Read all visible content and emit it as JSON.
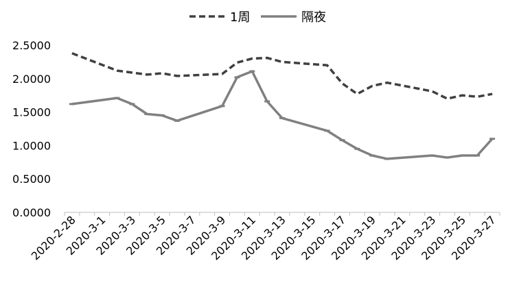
{
  "chart_data": {
    "type": "line",
    "title": "",
    "xlabel": "",
    "ylabel": "",
    "ylim": [
      0,
      2.5
    ],
    "yticks": [
      "0.0000",
      "0.5000",
      "1.0000",
      "1.5000",
      "2.0000",
      "2.5000"
    ],
    "xtick_labels": [
      "2020-2-28",
      "2020-3-1",
      "2020-3-3",
      "2020-3-5",
      "2020-3-7",
      "2020-3-9",
      "2020-3-11",
      "2020-3-13",
      "2020-3-15",
      "2020-3-17",
      "2020-3-19",
      "2020-3-21",
      "2020-3-23",
      "2020-3-25",
      "2020-3-27"
    ],
    "x": [
      "2020-2-28",
      "2020-3-2",
      "2020-3-3",
      "2020-3-4",
      "2020-3-5",
      "2020-3-6",
      "2020-3-9",
      "2020-3-10",
      "2020-3-11",
      "2020-3-12",
      "2020-3-13",
      "2020-3-16",
      "2020-3-17",
      "2020-3-18",
      "2020-3-19",
      "2020-3-20",
      "2020-3-23",
      "2020-3-24",
      "2020-3-25",
      "2020-3-26",
      "2020-3-27"
    ],
    "grid": false,
    "legend_position": "top-center",
    "series": [
      {
        "name": "1周",
        "style": "dashed",
        "color": "#404040",
        "values": [
          2.38,
          2.12,
          2.09,
          2.06,
          2.08,
          2.04,
          2.07,
          2.24,
          2.3,
          2.31,
          2.25,
          2.2,
          1.93,
          1.77,
          1.89,
          1.94,
          1.81,
          1.7,
          1.75,
          1.73,
          1.77
        ]
      },
      {
        "name": "隔夜",
        "style": "solid",
        "color": "#808080",
        "values": [
          1.62,
          1.71,
          1.62,
          1.47,
          1.45,
          1.37,
          1.59,
          2.02,
          2.11,
          1.66,
          1.41,
          1.22,
          1.08,
          0.95,
          0.85,
          0.8,
          0.85,
          0.82,
          0.85,
          0.85,
          1.1
        ]
      }
    ]
  }
}
